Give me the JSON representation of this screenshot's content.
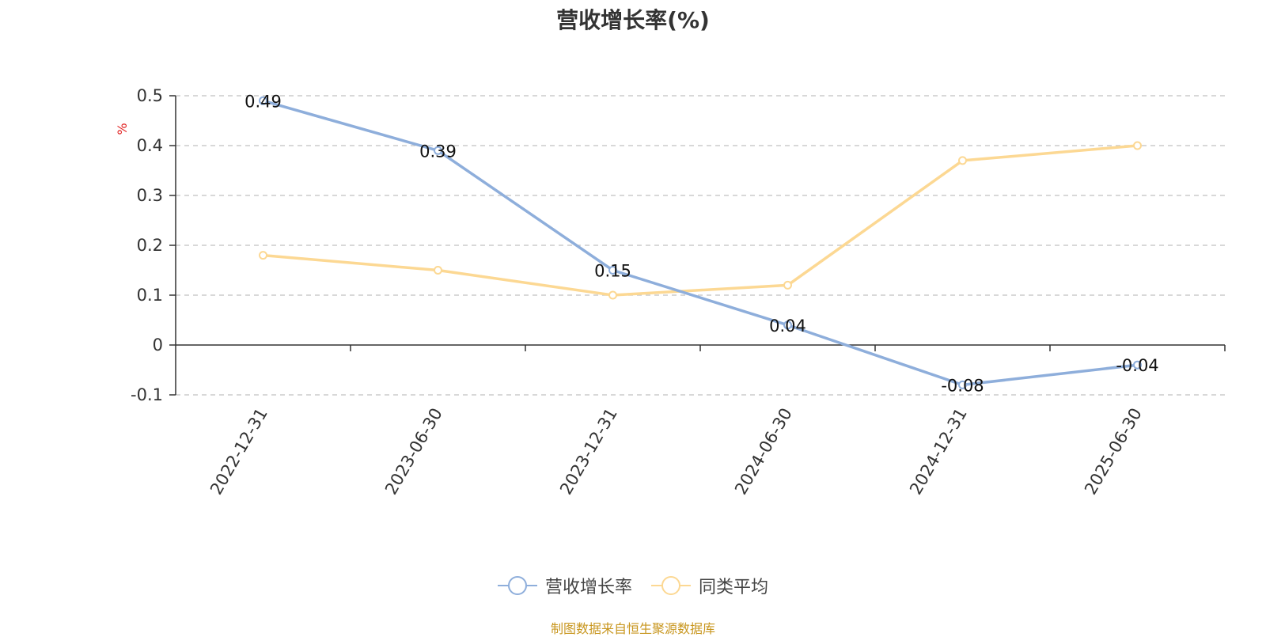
{
  "chart_data": {
    "type": "line",
    "title": "营收增长率(%)",
    "ylabel": "%",
    "xlabel": "",
    "categories": [
      "2022-12-31",
      "2023-06-30",
      "2023-12-31",
      "2024-06-30",
      "2024-12-31",
      "2025-06-30"
    ],
    "ylim": [
      -0.1,
      0.5
    ],
    "yticks": [
      -0.1,
      0,
      0.1,
      0.2,
      0.3,
      0.4,
      0.5
    ],
    "grid": true,
    "legend_position": "bottom",
    "series": [
      {
        "name": "营收增长率",
        "color": "#8eaedb",
        "values": [
          0.49,
          0.39,
          0.15,
          0.04,
          -0.08,
          -0.04
        ],
        "labels": [
          "0.49",
          "0.39",
          "0.15",
          "0.04",
          "-0.08",
          "-0.04"
        ]
      },
      {
        "name": "同类平均",
        "color": "#fcd893",
        "values": [
          0.18,
          0.15,
          0.1,
          0.12,
          0.37,
          0.4
        ]
      }
    ],
    "source": "制图数据来自恒生聚源数据库"
  }
}
